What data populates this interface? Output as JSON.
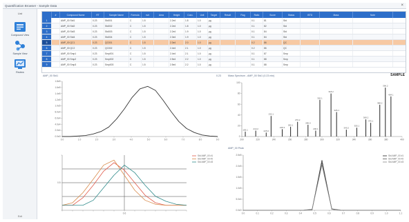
{
  "window": {
    "title": "Quantification Browser - Sample Data",
    "close_glyph": "×"
  },
  "sidebar": {
    "title": "List",
    "items": [
      {
        "label": "Compound View",
        "icon": "table-view-icon",
        "color": "#2f80d8"
      },
      {
        "label": "Sample View",
        "icon": "molecule-icon",
        "color": "#2f80d8"
      },
      {
        "label": "Review",
        "icon": "review-chart-icon",
        "color": "#2f80d8"
      }
    ],
    "bottom_label": "Exit"
  },
  "table": {
    "header_bg": "#2d6ec9",
    "selected_bg": "#f7c9a3",
    "columns": [
      "",
      "#",
      "Compound Name",
      "RT",
      "Sample Name",
      "Formula",
      "m/z",
      "Area",
      "Height",
      "Conc.",
      "Unit",
      "Target",
      "Result",
      "Flag",
      "Ratio",
      "Score",
      "Status",
      "ISTD",
      "Mass",
      "Note"
    ],
    "rows": [
      [
        "1",
        "",
        "AMP_00 Std1",
        "0.23",
        "Std001",
        "C",
        "1.5",
        "",
        "2.2e4",
        "1.8",
        "1.0",
        "µg",
        "",
        "",
        "0.1",
        "81",
        "Std",
        "",
        "",
        ""
      ],
      [
        "2",
        "",
        "AMP_00 Std2",
        "0.23",
        "Std002",
        "C",
        "1.5",
        "",
        "2.2e4",
        "1.8",
        "1.0",
        "µg",
        "",
        "",
        "0.1",
        "82",
        "Std",
        "",
        "",
        ""
      ],
      [
        "3",
        "",
        "AMP_00 Std3",
        "0.23",
        "Std003",
        "C",
        "1.5",
        "",
        "2.2e4",
        "1.9",
        "1.0",
        "µg",
        "",
        "",
        "0.1",
        "84",
        "Std",
        "",
        "",
        ""
      ],
      [
        "4",
        "",
        "AMP_00 Std4",
        "0.23",
        "Std004",
        "C",
        "1.5",
        "",
        "2.3e4",
        "1.9",
        "1.0",
        "µg",
        "",
        "",
        "0.1",
        "84",
        "Std",
        "",
        "",
        ""
      ],
      [
        "5",
        "",
        "AMP_00 QC1",
        "0.23",
        "QC001",
        "C",
        "1.5",
        "",
        "2.3e4",
        "2.0",
        "1.0",
        "µg",
        "",
        "",
        "0.2",
        "86",
        "QC",
        "",
        "",
        ""
      ],
      [
        "6",
        "",
        "AMP_00 QC2",
        "0.23",
        "QC002",
        "C",
        "1.5",
        "",
        "2.4e4",
        "2.1",
        "1.0",
        "µg",
        "",
        "",
        "0.2",
        "86",
        "QC",
        "",
        "",
        ""
      ],
      [
        "7",
        "",
        "AMP_00 Smp1",
        "0.23",
        "Smp001",
        "C",
        "1.5",
        "",
        "2.4e4",
        "2.1",
        "1.0",
        "µg",
        "",
        "",
        "0.1",
        "87",
        "Smp",
        "",
        "",
        ""
      ],
      [
        "8",
        "",
        "AMP_00 Smp2",
        "0.23",
        "Smp002",
        "C",
        "1.5",
        "",
        "2.5e4",
        "2.2",
        "1.0",
        "µg",
        "",
        "",
        "0.1",
        "88",
        "Smp",
        "",
        "",
        ""
      ],
      [
        "9",
        "",
        "AMP_00 Smp3",
        "0.23",
        "Smp003",
        "C",
        "1.5",
        "",
        "2.5e4",
        "2.2",
        "1.0",
        "µg",
        "",
        "",
        "0.1",
        "88",
        "Smp",
        "",
        "",
        ""
      ]
    ],
    "selected_row": 4
  },
  "panels": {
    "chromatogram": {
      "label": "AMP_00 Std1",
      "corner": "0.23"
    },
    "spectrum": {
      "label": "Mass Spectrum - AMP_00 Std1 (0.23 min)",
      "title": "SAMPLE"
    },
    "trace": {
      "label": "",
      "legend": [
        "Std AMP_00 #1",
        "Std AMP_00 #2",
        "Std AMP_00 #3"
      ]
    },
    "peak": {
      "label": "AMP_00 Peak",
      "legend": [
        "Std AMP_00 #1",
        "Std AMP_00 #2",
        "Std AMP_00 #3"
      ]
    }
  },
  "chart_data": [
    {
      "type": "line",
      "name": "chromatogram",
      "x": [
        0.0,
        0.5,
        1.0,
        1.5,
        2.0,
        2.5,
        3.0,
        3.5,
        4.0,
        4.5,
        5.0,
        5.5,
        6.0,
        6.5,
        7.0,
        7.5,
        8.0,
        8.5,
        9.0,
        9.5,
        10.0
      ],
      "series": [
        {
          "values": [
            0.0,
            0.0,
            0.01,
            0.02,
            0.05,
            0.1,
            0.19,
            0.35,
            0.55,
            0.78,
            0.95,
            1.0,
            0.92,
            0.72,
            0.5,
            0.3,
            0.16,
            0.08,
            0.03,
            0.01,
            0.0
          ],
          "color": "#333333"
        }
      ],
      "xlim": [
        0,
        10
      ],
      "ylim": [
        0,
        1.1
      ],
      "xticks": [
        "0.0",
        "1.0",
        "2.0",
        "3.0",
        "4.0",
        "5.0",
        "6.0",
        "7.0",
        "8.0",
        "9.0"
      ],
      "yticks": [
        "0.0e0",
        "2.0e4",
        "4.0e4",
        "6.0e4",
        "8.0e4",
        "1.0e5",
        "1.2e5",
        "1.4e5",
        "1.6e5",
        "1.8e5"
      ]
    },
    {
      "type": "bar",
      "name": "mass-spectrum",
      "x": [
        195,
        210,
        225,
        232,
        248,
        260,
        270,
        285,
        296,
        302,
        318,
        326,
        340,
        355,
        368,
        375,
        388,
        396,
        404
      ],
      "values": [
        10,
        12,
        8,
        42,
        15,
        20,
        30,
        24,
        12,
        75,
        88,
        50,
        14,
        18,
        35,
        28,
        65,
        100,
        82
      ],
      "labels": [
        "195.1",
        "210.2",
        "225.0",
        "232.1",
        "248.3",
        "260.1",
        "270.2",
        "285.0",
        "296.1",
        "302.1",
        "318.2",
        "326.1",
        "340.2",
        "355.1",
        "368.2",
        "375.1",
        "388.2",
        "396.2",
        "404.1"
      ],
      "xlim": [
        190,
        420
      ],
      "ylim": [
        0,
        110
      ],
      "xticks": [
        "200",
        "220",
        "240",
        "260",
        "280",
        "300",
        "320",
        "340",
        "360",
        "380",
        "400"
      ],
      "yticks": [
        "0",
        "20",
        "40",
        "60",
        "80",
        "100"
      ]
    },
    {
      "type": "line",
      "name": "trace",
      "x": [
        0,
        1,
        2,
        3,
        4,
        5,
        6,
        7,
        8,
        9,
        10,
        11,
        12
      ],
      "series": [
        {
          "values": [
            0.1,
            0.1,
            0.25,
            0.5,
            0.78,
            0.95,
            0.8,
            0.55,
            0.3,
            0.15,
            0.1,
            0.1,
            0.1
          ],
          "color": "#e05a4a"
        },
        {
          "values": [
            0.1,
            0.15,
            0.35,
            0.62,
            0.9,
            1.0,
            0.7,
            0.4,
            0.2,
            0.12,
            0.1,
            0.1,
            0.1
          ],
          "color": "#d88a4a"
        },
        {
          "values": [
            0.1,
            0.1,
            0.1,
            0.2,
            0.45,
            0.7,
            0.9,
            0.75,
            0.5,
            0.28,
            0.18,
            0.12,
            0.1
          ],
          "color": "#2e8a8a"
        }
      ],
      "xlim": [
        0,
        12
      ],
      "ylim": [
        0,
        1.1
      ],
      "xticks": [
        "",
        "",
        "",
        "",
        "",
        "",
        "0.6",
        "",
        "",
        "",
        "",
        "",
        ""
      ],
      "yticks": [
        "",
        "0.5",
        ""
      ]
    },
    {
      "type": "line",
      "name": "peak",
      "x": [
        0,
        1,
        2,
        3,
        4,
        5,
        6,
        7,
        8,
        9,
        10,
        11,
        12,
        13,
        14,
        15,
        16
      ],
      "series": [
        {
          "values": [
            0,
            0,
            0,
            0,
            0,
            0,
            0,
            0.01,
            1.0,
            0.02,
            0,
            0,
            0,
            0,
            0,
            0,
            0
          ],
          "color": "#222222"
        },
        {
          "values": [
            0,
            0,
            0,
            0,
            0,
            0,
            0,
            0.02,
            0.95,
            0.03,
            0,
            0,
            0,
            0,
            0,
            0,
            0
          ],
          "color": "#555555"
        },
        {
          "values": [
            0,
            0,
            0,
            0,
            0,
            0,
            0,
            0.015,
            0.9,
            0.02,
            0,
            0,
            0,
            0,
            0,
            0,
            0
          ],
          "color": "#888888"
        }
      ],
      "xlim": [
        0,
        16
      ],
      "ylim": [
        0,
        1.1
      ],
      "xticks": [
        "0.0",
        "0.1",
        "0.2",
        "0.3",
        "0.4",
        "0.5",
        "0.6",
        "0.7",
        "0.8",
        "0.9",
        "1.0",
        "1.1"
      ],
      "yticks": [
        "0.0e0",
        "5.0e4",
        "1.0e5",
        "1.5e5",
        "2.0e5",
        "2.5e5"
      ]
    }
  ]
}
